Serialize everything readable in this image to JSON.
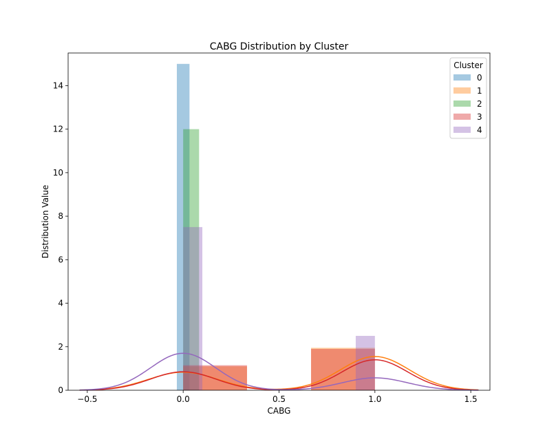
{
  "chart_data": {
    "type": "bar",
    "title": "CABG Distribution by Cluster",
    "xlabel": "CABG",
    "ylabel": "Distribution Value",
    "xlim": [
      -0.6,
      1.6
    ],
    "ylim": [
      0,
      15.5
    ],
    "xticks": [
      -0.5,
      0.0,
      0.5,
      1.0,
      1.5
    ],
    "xtick_labels": [
      "−0.5",
      "0.0",
      "0.5",
      "1.0",
      "1.5"
    ],
    "yticks": [
      0,
      2,
      4,
      6,
      8,
      10,
      12,
      14
    ],
    "ytick_labels": [
      "0",
      "2",
      "4",
      "6",
      "8",
      "10",
      "12",
      "14"
    ],
    "grid": false,
    "legend": {
      "title": "Cluster",
      "placement": "top-right"
    },
    "series": [
      {
        "name": "0",
        "color": "#1f77b4",
        "bars": [
          {
            "x0": -0.033,
            "x1": 0.033,
            "height": 15.0
          }
        ],
        "kde": null
      },
      {
        "name": "1",
        "color": "#ff7f0e",
        "bars": [
          {
            "x0": 0.0,
            "x1": 0.333,
            "height": 1.1
          },
          {
            "x0": 0.667,
            "x1": 1.0,
            "height": 1.95
          }
        ],
        "kde": {
          "peaks": [
            {
              "mu": 0.0,
              "sigma": 0.18,
              "height": 0.83
            },
            {
              "mu": 1.0,
              "sigma": 0.18,
              "height": 1.55
            }
          ]
        }
      },
      {
        "name": "2",
        "color": "#2ca02c",
        "bars": [
          {
            "x0": 0.0,
            "x1": 0.083,
            "height": 12.0
          }
        ],
        "kde": null
      },
      {
        "name": "3",
        "color": "#d62728",
        "bars": [
          {
            "x0": 0.0,
            "x1": 0.333,
            "height": 1.15
          },
          {
            "x0": 0.667,
            "x1": 1.0,
            "height": 1.9
          }
        ],
        "kde": {
          "peaks": [
            {
              "mu": 0.0,
              "sigma": 0.17,
              "height": 0.85
            },
            {
              "mu": 1.0,
              "sigma": 0.17,
              "height": 1.4
            }
          ]
        }
      },
      {
        "name": "4",
        "color": "#9467bd",
        "bars": [
          {
            "x0": 0.0,
            "x1": 0.1,
            "height": 7.5
          },
          {
            "x0": 0.9,
            "x1": 1.0,
            "height": 2.5
          }
        ],
        "kde": {
          "peaks": [
            {
              "mu": 0.0,
              "sigma": 0.17,
              "height": 1.7
            },
            {
              "mu": 1.0,
              "sigma": 0.17,
              "height": 0.57
            }
          ]
        }
      }
    ]
  }
}
